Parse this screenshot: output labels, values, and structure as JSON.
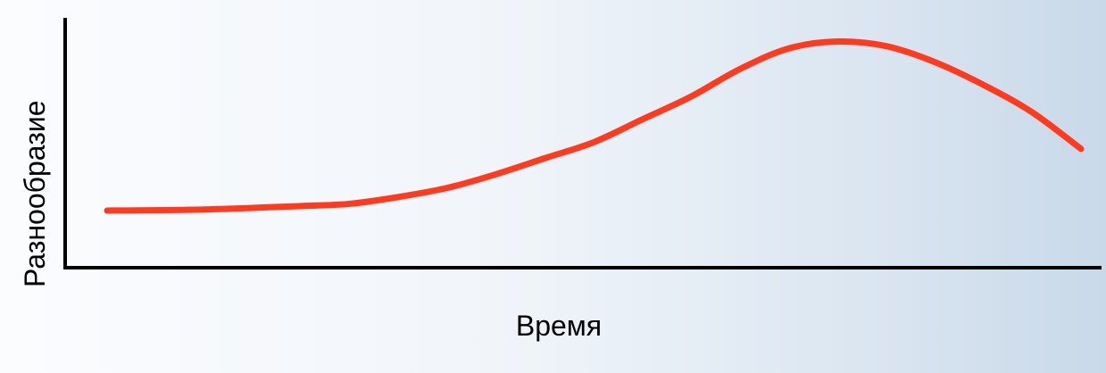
{
  "chart_data": {
    "type": "line",
    "title": "",
    "xlabel": "Время",
    "ylabel": "Разнообразие",
    "x": [
      0,
      0.1,
      0.2,
      0.25,
      0.3,
      0.35,
      0.4,
      0.45,
      0.5,
      0.55,
      0.6,
      0.65,
      0.7,
      0.75,
      0.8,
      0.85,
      0.9,
      0.95,
      1.0
    ],
    "series": [
      {
        "values": [
          0.25,
          0.255,
          0.27,
          0.28,
          0.31,
          0.35,
          0.41,
          0.48,
          0.55,
          0.65,
          0.75,
          0.87,
          0.96,
          0.99,
          0.97,
          0.9,
          0.8,
          0.68,
          0.52
        ],
        "color": "#ff3b1f"
      }
    ],
    "xlim": [
      0,
      1.0
    ],
    "ylim": [
      0,
      1.0
    ],
    "grid": false,
    "legend": "none",
    "colors": {
      "axis": "#000000",
      "line": "#ff3b1f"
    }
  }
}
